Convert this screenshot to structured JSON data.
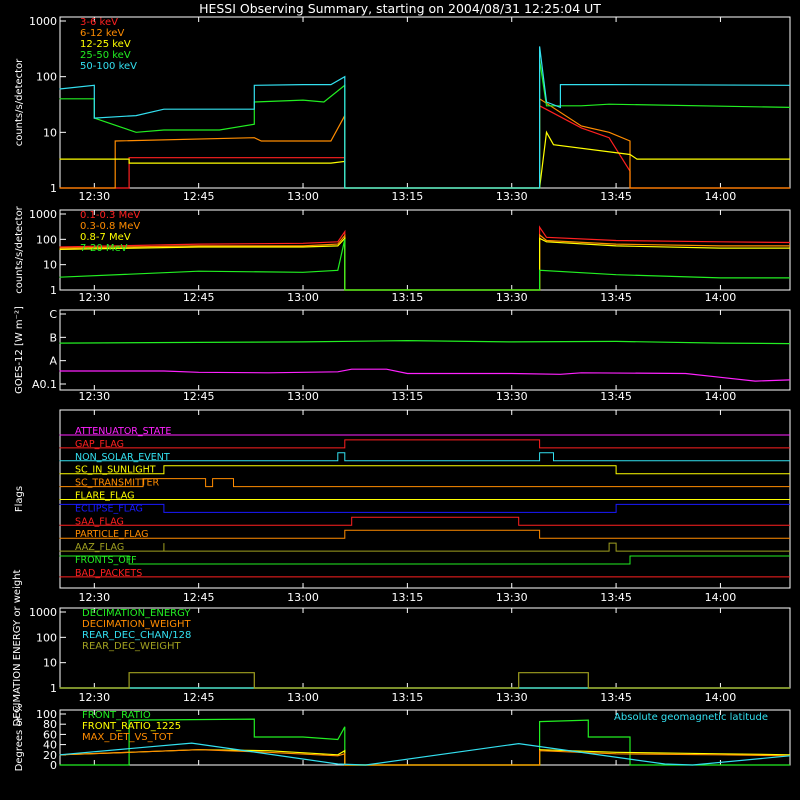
{
  "title": "HESSI Observing Summary, starting on 2004/08/31 12:25:04 UT",
  "colors": {
    "background": "#000000",
    "axes": "#ffffff",
    "red": "#ff2020",
    "orange": "#ff8c00",
    "yellow": "#ffff00",
    "green": "#22ee22",
    "cyan": "#33e0f0",
    "magenta": "#ff22ff",
    "blue": "#1a1aff",
    "olive": "#a0a020",
    "darkorange": "#ff7744"
  },
  "time_ticks": [
    "12:30",
    "12:45",
    "13:00",
    "13:15",
    "13:30",
    "13:45",
    "14:00"
  ],
  "chart_data": [
    {
      "type": "line",
      "ylabel": "counts/s/detector",
      "yscale": "log",
      "ylim": [
        1,
        1000
      ],
      "ytick_labels": [
        "1",
        "10",
        "100",
        "1000"
      ],
      "series": [
        {
          "name": "3-6 keV",
          "color": "#ff2020",
          "x": [
            "12:25",
            "12:35",
            "12:35",
            "13:06",
            "13:06",
            "13:34",
            "13:34",
            "13:40",
            "13:44",
            "13:47",
            "13:47",
            "14:10"
          ],
          "y": [
            1,
            1,
            3.5,
            3.5,
            1,
            1,
            30,
            12,
            8,
            2,
            1,
            1
          ]
        },
        {
          "name": "6-12 keV",
          "color": "#ff8c00",
          "x": [
            "12:25",
            "12:33",
            "12:33",
            "12:53",
            "12:54",
            "13:04",
            "13:06",
            "13:06",
            "13:34",
            "13:34",
            "13:40",
            "13:44",
            "13:47",
            "13:47",
            "14:10"
          ],
          "y": [
            1,
            1,
            7,
            8,
            7,
            7,
            20,
            1,
            1,
            40,
            13,
            10,
            7,
            1,
            1
          ]
        },
        {
          "name": "12-25 keV",
          "color": "#ffff00",
          "x": [
            "12:25",
            "12:35",
            "12:35",
            "13:04",
            "13:06",
            "13:06",
            "13:34",
            "13:35",
            "13:36",
            "13:47",
            "13:48",
            "14:10"
          ],
          "y": [
            3.3,
            3.3,
            2.8,
            2.8,
            3,
            1,
            1,
            10,
            6,
            4,
            3.3,
            3.3
          ]
        },
        {
          "name": "25-50 keV",
          "color": "#22ee22",
          "x": [
            "12:25",
            "12:30",
            "12:30",
            "12:36",
            "12:40",
            "12:48",
            "12:53",
            "12:53",
            "13:00",
            "13:03",
            "13:06",
            "13:06",
            "13:34",
            "13:34",
            "13:35",
            "13:40",
            "13:44",
            "14:10"
          ],
          "y": [
            40,
            40,
            18,
            10,
            11,
            11,
            14,
            35,
            38,
            35,
            70,
            1,
            1,
            200,
            30,
            30,
            32,
            28
          ]
        },
        {
          "name": "50-100 keV",
          "color": "#33e0f0",
          "x": [
            "12:25",
            "12:30",
            "12:30",
            "12:36",
            "12:40",
            "12:48",
            "12:53",
            "12:53",
            "13:00",
            "13:04",
            "13:06",
            "13:06",
            "13:34",
            "13:34",
            "13:35",
            "13:37",
            "13:37",
            "13:40",
            "13:44",
            "14:10"
          ],
          "y": [
            60,
            70,
            18,
            20,
            26,
            26,
            26,
            70,
            72,
            72,
            100,
            1,
            1,
            350,
            35,
            28,
            72,
            72,
            72,
            70
          ]
        }
      ]
    },
    {
      "type": "line",
      "ylabel": "counts/s/detector",
      "yscale": "log",
      "ylim": [
        1,
        1000
      ],
      "ytick_labels": [
        "1",
        "10",
        "100",
        "1000"
      ],
      "series": [
        {
          "name": "0.1-0.3 MeV",
          "color": "#ff2020",
          "x": [
            "12:25",
            "12:45",
            "13:00",
            "13:05",
            "13:06",
            "13:06",
            "13:34",
            "13:34",
            "13:35",
            "13:45",
            "14:00",
            "14:10"
          ],
          "y": [
            50,
            65,
            70,
            80,
            200,
            1,
            1,
            300,
            120,
            90,
            80,
            75
          ]
        },
        {
          "name": "0.3-0.8 MeV",
          "color": "#ff8c00",
          "x": [
            "12:25",
            "12:45",
            "13:00",
            "13:05",
            "13:06",
            "13:06",
            "13:34",
            "13:34",
            "13:35",
            "13:45",
            "14:00",
            "14:10"
          ],
          "y": [
            45,
            55,
            55,
            65,
            140,
            1,
            1,
            150,
            90,
            65,
            55,
            55
          ]
        },
        {
          "name": "0.8-7 MeV",
          "color": "#ffff00",
          "x": [
            "12:25",
            "12:45",
            "13:00",
            "13:05",
            "13:06",
            "13:06",
            "13:34",
            "13:34",
            "13:35",
            "13:45",
            "14:00",
            "14:10"
          ],
          "y": [
            40,
            50,
            50,
            55,
            110,
            1,
            1,
            110,
            80,
            55,
            45,
            45
          ]
        },
        {
          "name": "7-20 MeV",
          "color": "#22ee22",
          "x": [
            "12:25",
            "12:45",
            "13:00",
            "13:05",
            "13:06",
            "13:06",
            "13:34",
            "13:34",
            "13:45",
            "14:00",
            "14:10"
          ],
          "y": [
            3.2,
            5.5,
            5,
            6,
            100,
            1,
            1,
            6,
            4,
            3,
            3
          ]
        }
      ]
    },
    {
      "type": "line",
      "ylabel": "GOES-12 [W m⁻²]",
      "ytick_labels": [
        "A0.1",
        "A",
        "B",
        "C"
      ],
      "ylim": [
        0,
        3
      ],
      "series": [
        {
          "name": "",
          "color": "#22ee22",
          "x": [
            "12:25",
            "12:45",
            "13:00",
            "13:15",
            "13:30",
            "13:45",
            "14:00",
            "14:10"
          ],
          "y": [
            1.85,
            1.88,
            1.9,
            1.95,
            1.9,
            1.92,
            1.85,
            1.83
          ]
        },
        {
          "name": "",
          "color": "#ff22ff",
          "x": [
            "12:25",
            "12:40",
            "12:45",
            "12:55",
            "13:05",
            "13:07",
            "13:12",
            "13:15",
            "13:30",
            "13:37",
            "13:40",
            "13:55",
            "14:00",
            "14:05",
            "14:10"
          ],
          "y": [
            0.75,
            0.75,
            0.7,
            0.68,
            0.72,
            0.82,
            0.82,
            0.65,
            0.65,
            0.62,
            0.68,
            0.65,
            0.5,
            0.35,
            0.4
          ]
        }
      ]
    },
    {
      "type": "line",
      "ylabel": "Flags",
      "series": [
        {
          "name": "ATTENUATOR_STATE",
          "color": "#ff22ff",
          "x": [
            "12:25",
            "14:10"
          ],
          "y": [
            0,
            0
          ]
        },
        {
          "name": "GAP_FLAG",
          "color": "#ff2020",
          "x": [
            "12:25",
            "13:06",
            "13:06",
            "13:34",
            "13:34",
            "14:10"
          ],
          "y": [
            0,
            0,
            1,
            1,
            0,
            0
          ]
        },
        {
          "name": "NON_SOLAR_EVENT",
          "color": "#33e0f0",
          "x": [
            "12:25",
            "13:05",
            "13:05",
            "13:06",
            "13:06",
            "13:34",
            "13:34",
            "13:36",
            "13:36",
            "14:10"
          ],
          "y": [
            0,
            0,
            1,
            1,
            0,
            0,
            1,
            1,
            0,
            0
          ]
        },
        {
          "name": "SC_IN_SUNLIGHT",
          "color": "#ffff00",
          "x": [
            "12:25",
            "12:40",
            "12:40",
            "13:45",
            "13:45",
            "14:10"
          ],
          "y": [
            0,
            0,
            1,
            1,
            0,
            0
          ]
        },
        {
          "name": "SC_TRANSMITTER",
          "color": "#ff8c00",
          "x": [
            "12:25",
            "12:37",
            "12:37",
            "12:46",
            "12:46",
            "12:47",
            "12:47",
            "12:50",
            "12:50",
            "14:10"
          ],
          "y": [
            0,
            0,
            1,
            1,
            0,
            0,
            1,
            1,
            0,
            0
          ]
        },
        {
          "name": "FLARE_FLAG",
          "color": "#ffff00",
          "x": [
            "12:25",
            "14:10"
          ],
          "y": [
            0,
            0
          ]
        },
        {
          "name": "ECLIPSE_FLAG",
          "color": "#1a1aff",
          "x": [
            "12:25",
            "12:40",
            "12:40",
            "13:45",
            "13:45",
            "14:10"
          ],
          "y": [
            1,
            1,
            0,
            0,
            1,
            1
          ]
        },
        {
          "name": "SAA_FLAG",
          "color": "#ff2020",
          "x": [
            "12:25",
            "13:07",
            "13:07",
            "13:31",
            "13:31",
            "14:10"
          ],
          "y": [
            0,
            0,
            1,
            1,
            0,
            0
          ]
        },
        {
          "name": "PARTICLE_FLAG",
          "color": "#ff8c00",
          "x": [
            "12:25",
            "13:06",
            "13:06",
            "13:34",
            "13:34",
            "13:37",
            "13:37",
            "14:10"
          ],
          "y": [
            0,
            0,
            1,
            1,
            0,
            0,
            0,
            0
          ]
        },
        {
          "name": "AAZ_FLAG",
          "color": "#a0a020",
          "x": [
            "12:25",
            "12:40",
            "12:40",
            "12:40",
            "12:40",
            "13:44",
            "13:44",
            "13:45",
            "13:45",
            "14:10"
          ],
          "y": [
            0,
            0,
            1,
            1,
            0,
            0,
            1,
            1,
            0,
            0
          ]
        },
        {
          "name": "FRONTS_OFF",
          "color": "#22ee22",
          "x": [
            "12:25",
            "12:35",
            "12:35",
            "13:47",
            "13:47",
            "14:10"
          ],
          "y": [
            1,
            1,
            0,
            0,
            1,
            1
          ]
        },
        {
          "name": "BAD_PACKETS",
          "color": "#ff2020",
          "x": [
            "12:25",
            "14:10"
          ],
          "y": [
            0,
            0
          ]
        }
      ]
    },
    {
      "type": "line",
      "ylabel": "DECIMATION ENERGY or weight",
      "yscale": "log",
      "ylim": [
        1,
        1000
      ],
      "ytick_labels": [
        "1",
        "10",
        "100",
        "1000"
      ],
      "series": [
        {
          "name": "DECIMATION_ENERGY",
          "color": "#22ee22",
          "x": [
            "12:25",
            "14:10"
          ],
          "y": [
            1,
            1
          ]
        },
        {
          "name": "DECIMATION_WEIGHT",
          "color": "#ff8c00",
          "x": [
            "12:25",
            "14:10"
          ],
          "y": [
            1,
            1
          ]
        },
        {
          "name": "REAR_DEC_CHAN/128",
          "color": "#33e0f0",
          "x": [
            "12:25",
            "14:10"
          ],
          "y": [
            1,
            1
          ]
        },
        {
          "name": "REAR_DEC_WEIGHT",
          "color": "#a0a020",
          "x": [
            "12:25",
            "12:35",
            "12:35",
            "12:53",
            "12:53",
            "13:31",
            "13:31",
            "13:41",
            "13:41",
            "14:10"
          ],
          "y": [
            1,
            1,
            4,
            4,
            1,
            1,
            4,
            4,
            1,
            1
          ]
        }
      ]
    },
    {
      "type": "line",
      "ylabel": "Degrees or %",
      "ylim": [
        0,
        100
      ],
      "ytick_labels": [
        "0",
        "20",
        "40",
        "60",
        "80",
        "100"
      ],
      "annotation": "Absolute geomagnetic latitude",
      "series": [
        {
          "name": "FRONT_RATIO",
          "color": "#22ee22",
          "x": [
            "12:25",
            "12:35",
            "12:35",
            "12:53",
            "12:53",
            "13:00",
            "13:05",
            "13:06",
            "13:06",
            "13:34",
            "13:34",
            "13:41",
            "13:41",
            "13:47",
            "13:47",
            "14:10"
          ],
          "y": [
            0,
            0,
            88,
            90,
            55,
            55,
            50,
            75,
            0,
            0,
            85,
            88,
            55,
            55,
            0,
            0
          ]
        },
        {
          "name": "FRONT_RATIO_1225",
          "color": "#ffff00",
          "x": [
            "12:25",
            "12:35",
            "12:45",
            "12:55",
            "13:05",
            "13:06",
            "13:06",
            "13:34",
            "13:34",
            "13:45",
            "14:00",
            "14:10"
          ],
          "y": [
            20,
            25,
            30,
            28,
            20,
            28,
            0,
            0,
            30,
            25,
            22,
            20
          ]
        },
        {
          "name": "MAX_DET_VS_TOT",
          "color": "#ff8c00",
          "x": [
            "12:25",
            "12:35",
            "12:45",
            "12:55",
            "13:05",
            "13:06",
            "13:06",
            "13:34",
            "13:34",
            "13:45",
            "14:00",
            "14:10"
          ],
          "y": [
            20,
            25,
            30,
            25,
            18,
            22,
            0,
            0,
            28,
            22,
            20,
            18
          ]
        },
        {
          "name": "Absolute geomagnetic latitude",
          "color": "#33e0f0",
          "x": [
            "12:25",
            "12:44",
            "13:05",
            "13:09",
            "13:31",
            "13:52",
            "13:56",
            "14:10"
          ],
          "y": [
            20,
            43,
            2,
            0,
            42,
            2,
            0,
            18
          ]
        }
      ]
    }
  ]
}
